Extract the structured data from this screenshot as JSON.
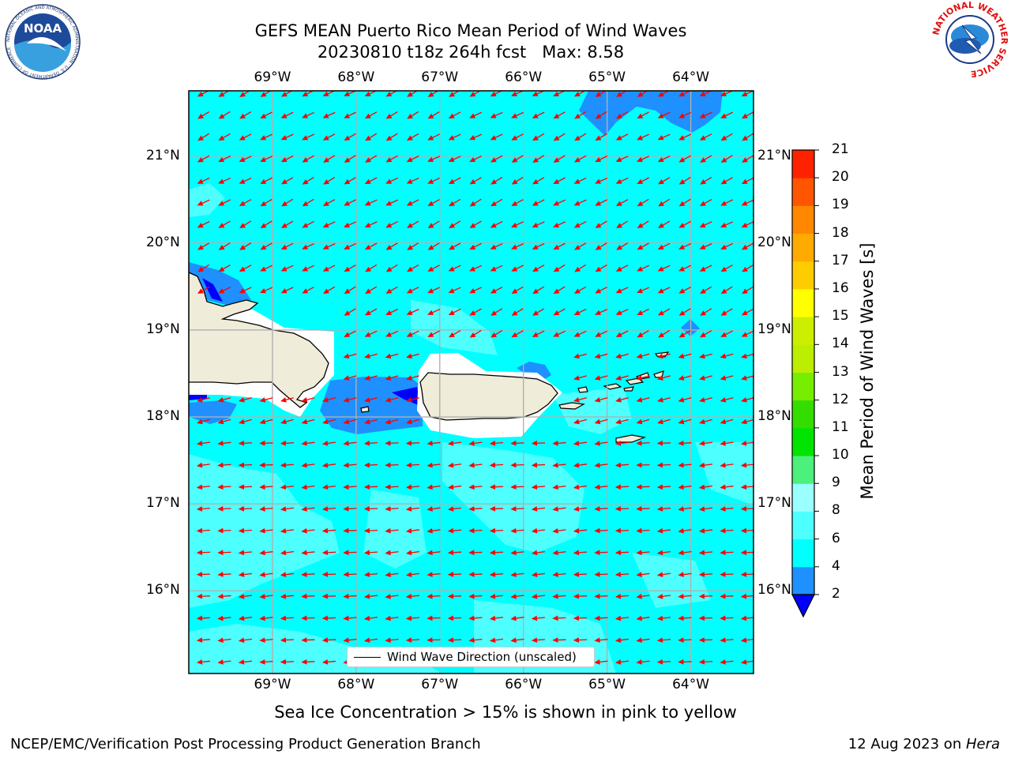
{
  "title": {
    "line1": "GEFS MEAN Puerto Rico Mean Period of Wind Waves",
    "line2": "20230810 t18z 264h fcst   Max: 8.58"
  },
  "axes": {
    "lon_labels": [
      "69°W",
      "68°W",
      "67°W",
      "66°W",
      "65°W",
      "64°W"
    ],
    "lat_labels": [
      "21°N",
      "20°N",
      "19°N",
      "18°N",
      "17°N",
      "16°N"
    ],
    "lon_values": [
      -69,
      -68,
      -67,
      -66,
      -65,
      -64
    ],
    "lat_values": [
      21,
      20,
      19,
      18,
      17,
      16
    ],
    "lon_range": [
      -70,
      -63.25
    ],
    "lat_range": [
      15.05,
      21.75
    ],
    "grid": true
  },
  "colorbar": {
    "label": "Mean Period of Wind Waves [s]",
    "ticks": [
      "2",
      "4",
      "6",
      "8",
      "9",
      "10",
      "11",
      "12",
      "13",
      "14",
      "15",
      "16",
      "17",
      "18",
      "19",
      "20",
      "21"
    ],
    "colors": [
      "#0000ff",
      "#1e90ff",
      "#00ffff",
      "#4dffff",
      "#99ffff",
      "#4cf07c",
      "#00e400",
      "#33dd00",
      "#77ee00",
      "#bbee00",
      "#ccee00",
      "#ffff00",
      "#ffcc00",
      "#ffaa00",
      "#ff8800",
      "#ff5500",
      "#ff2200",
      "#ff0000"
    ]
  },
  "map": {
    "ocean_color": "#00ffff",
    "light_color": "#4dffff",
    "low_color": "#1e90ff",
    "lowest_color": "#0000ff",
    "land_color": "#efecd9",
    "arrow_color": "#ff0000"
  },
  "legend": {
    "label": "Wind Wave Direction (unscaled)"
  },
  "subtitle": "Sea Ice Concentration > 15% is shown in pink to yellow",
  "footer": {
    "left": "NCEP/EMC/Verification Post Processing Product Generation Branch",
    "right_date": "12 Aug 2023 on ",
    "right_host": "Hera"
  },
  "logos": {
    "noaa": "NOAA",
    "nws_ring": "NATIONAL WEATHER SERVICE",
    "noaa_ring": "NATIONAL OCEANIC AND ATMOSPHERIC ADMINISTRATION · U.S. DEPARTMENT OF COMMERCE"
  }
}
